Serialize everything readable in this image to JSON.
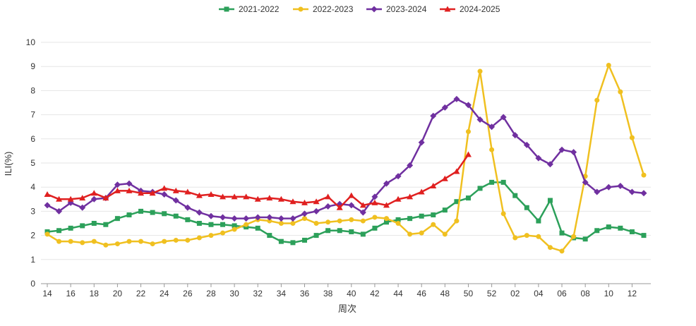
{
  "chart_data": {
    "type": "line",
    "xlabel": "周次",
    "ylabel": "ILI(%)",
    "ylim": [
      0,
      10
    ],
    "y_ticks": [
      "0",
      "1",
      "2",
      "3",
      "4",
      "5",
      "6",
      "7",
      "8",
      "9",
      "10"
    ],
    "grid": "horizontal",
    "legend_position": "top-center",
    "x": [
      "14",
      "15",
      "16",
      "17",
      "18",
      "19",
      "20",
      "21",
      "22",
      "23",
      "24",
      "25",
      "26",
      "27",
      "28",
      "29",
      "30",
      "31",
      "32",
      "33",
      "34",
      "35",
      "36",
      "37",
      "38",
      "39",
      "40",
      "41",
      "42",
      "43",
      "44",
      "45",
      "46",
      "47",
      "48",
      "49",
      "50",
      "51",
      "52",
      "01",
      "02",
      "03",
      "04",
      "05",
      "06",
      "07",
      "08",
      "09",
      "10",
      "11",
      "12",
      "13"
    ],
    "x_tick_labels": [
      "14",
      "16",
      "18",
      "20",
      "22",
      "24",
      "26",
      "28",
      "30",
      "32",
      "34",
      "36",
      "38",
      "40",
      "42",
      "44",
      "46",
      "48",
      "50",
      "52",
      "02",
      "04",
      "06",
      "08",
      "10",
      "12"
    ],
    "series": [
      {
        "name": "2021-2022",
        "color": "#2ca05a",
        "marker": "square",
        "values": [
          2.15,
          2.2,
          2.3,
          2.4,
          2.5,
          2.45,
          2.7,
          2.85,
          3.0,
          2.95,
          2.9,
          2.8,
          2.65,
          2.5,
          2.45,
          2.45,
          2.4,
          2.35,
          2.3,
          2.0,
          1.75,
          1.7,
          1.8,
          2.0,
          2.2,
          2.2,
          2.15,
          2.05,
          2.3,
          2.55,
          2.65,
          2.7,
          2.8,
          2.85,
          3.05,
          3.4,
          3.55,
          3.95,
          4.2,
          4.2,
          3.65,
          3.15,
          2.6,
          3.45,
          2.1,
          1.9,
          1.85,
          2.2,
          2.35,
          2.3,
          2.15,
          2.0
        ]
      },
      {
        "name": "2022-2023",
        "color": "#f0c020",
        "marker": "circle",
        "values": [
          2.05,
          1.75,
          1.75,
          1.7,
          1.75,
          1.6,
          1.65,
          1.75,
          1.75,
          1.65,
          1.75,
          1.8,
          1.8,
          1.9,
          2.0,
          2.1,
          2.25,
          2.45,
          2.65,
          2.6,
          2.5,
          2.5,
          2.7,
          2.5,
          2.55,
          2.6,
          2.65,
          2.6,
          2.75,
          2.7,
          2.5,
          2.05,
          2.1,
          2.45,
          2.05,
          2.6,
          6.3,
          8.8,
          5.55,
          2.9,
          1.9,
          2.0,
          1.95,
          1.5,
          1.35,
          1.95,
          4.45,
          7.6,
          9.05,
          7.95,
          6.05,
          4.5
        ]
      },
      {
        "name": "2023-2024",
        "color": "#7030a0",
        "marker": "diamond",
        "values": [
          3.25,
          3.0,
          3.35,
          3.15,
          3.5,
          3.55,
          4.1,
          4.15,
          3.85,
          3.8,
          3.7,
          3.45,
          3.15,
          2.95,
          2.8,
          2.75,
          2.7,
          2.7,
          2.75,
          2.75,
          2.7,
          2.7,
          2.9,
          3.0,
          3.2,
          3.3,
          3.25,
          2.95,
          3.6,
          4.15,
          4.45,
          4.9,
          5.85,
          6.95,
          7.3,
          7.65,
          7.4,
          6.8,
          6.5,
          6.9,
          6.15,
          5.75,
          5.2,
          4.95,
          5.55,
          5.45,
          4.2,
          3.8,
          4.0,
          4.05,
          3.8,
          3.75
        ]
      },
      {
        "name": "2024-2025",
        "color": "#e02020",
        "marker": "triangle",
        "values": [
          3.7,
          3.5,
          3.5,
          3.55,
          3.75,
          3.55,
          3.85,
          3.85,
          3.75,
          3.75,
          3.95,
          3.85,
          3.8,
          3.65,
          3.7,
          3.6,
          3.6,
          3.6,
          3.5,
          3.55,
          3.5,
          3.4,
          3.35,
          3.4,
          3.6,
          3.15,
          3.65,
          3.25,
          3.35,
          3.25,
          3.5,
          3.6,
          3.8,
          4.05,
          4.35,
          4.65,
          5.35,
          null,
          null,
          null,
          null,
          null,
          null,
          null,
          null,
          null,
          null,
          null,
          null,
          null,
          null,
          null
        ]
      }
    ]
  }
}
